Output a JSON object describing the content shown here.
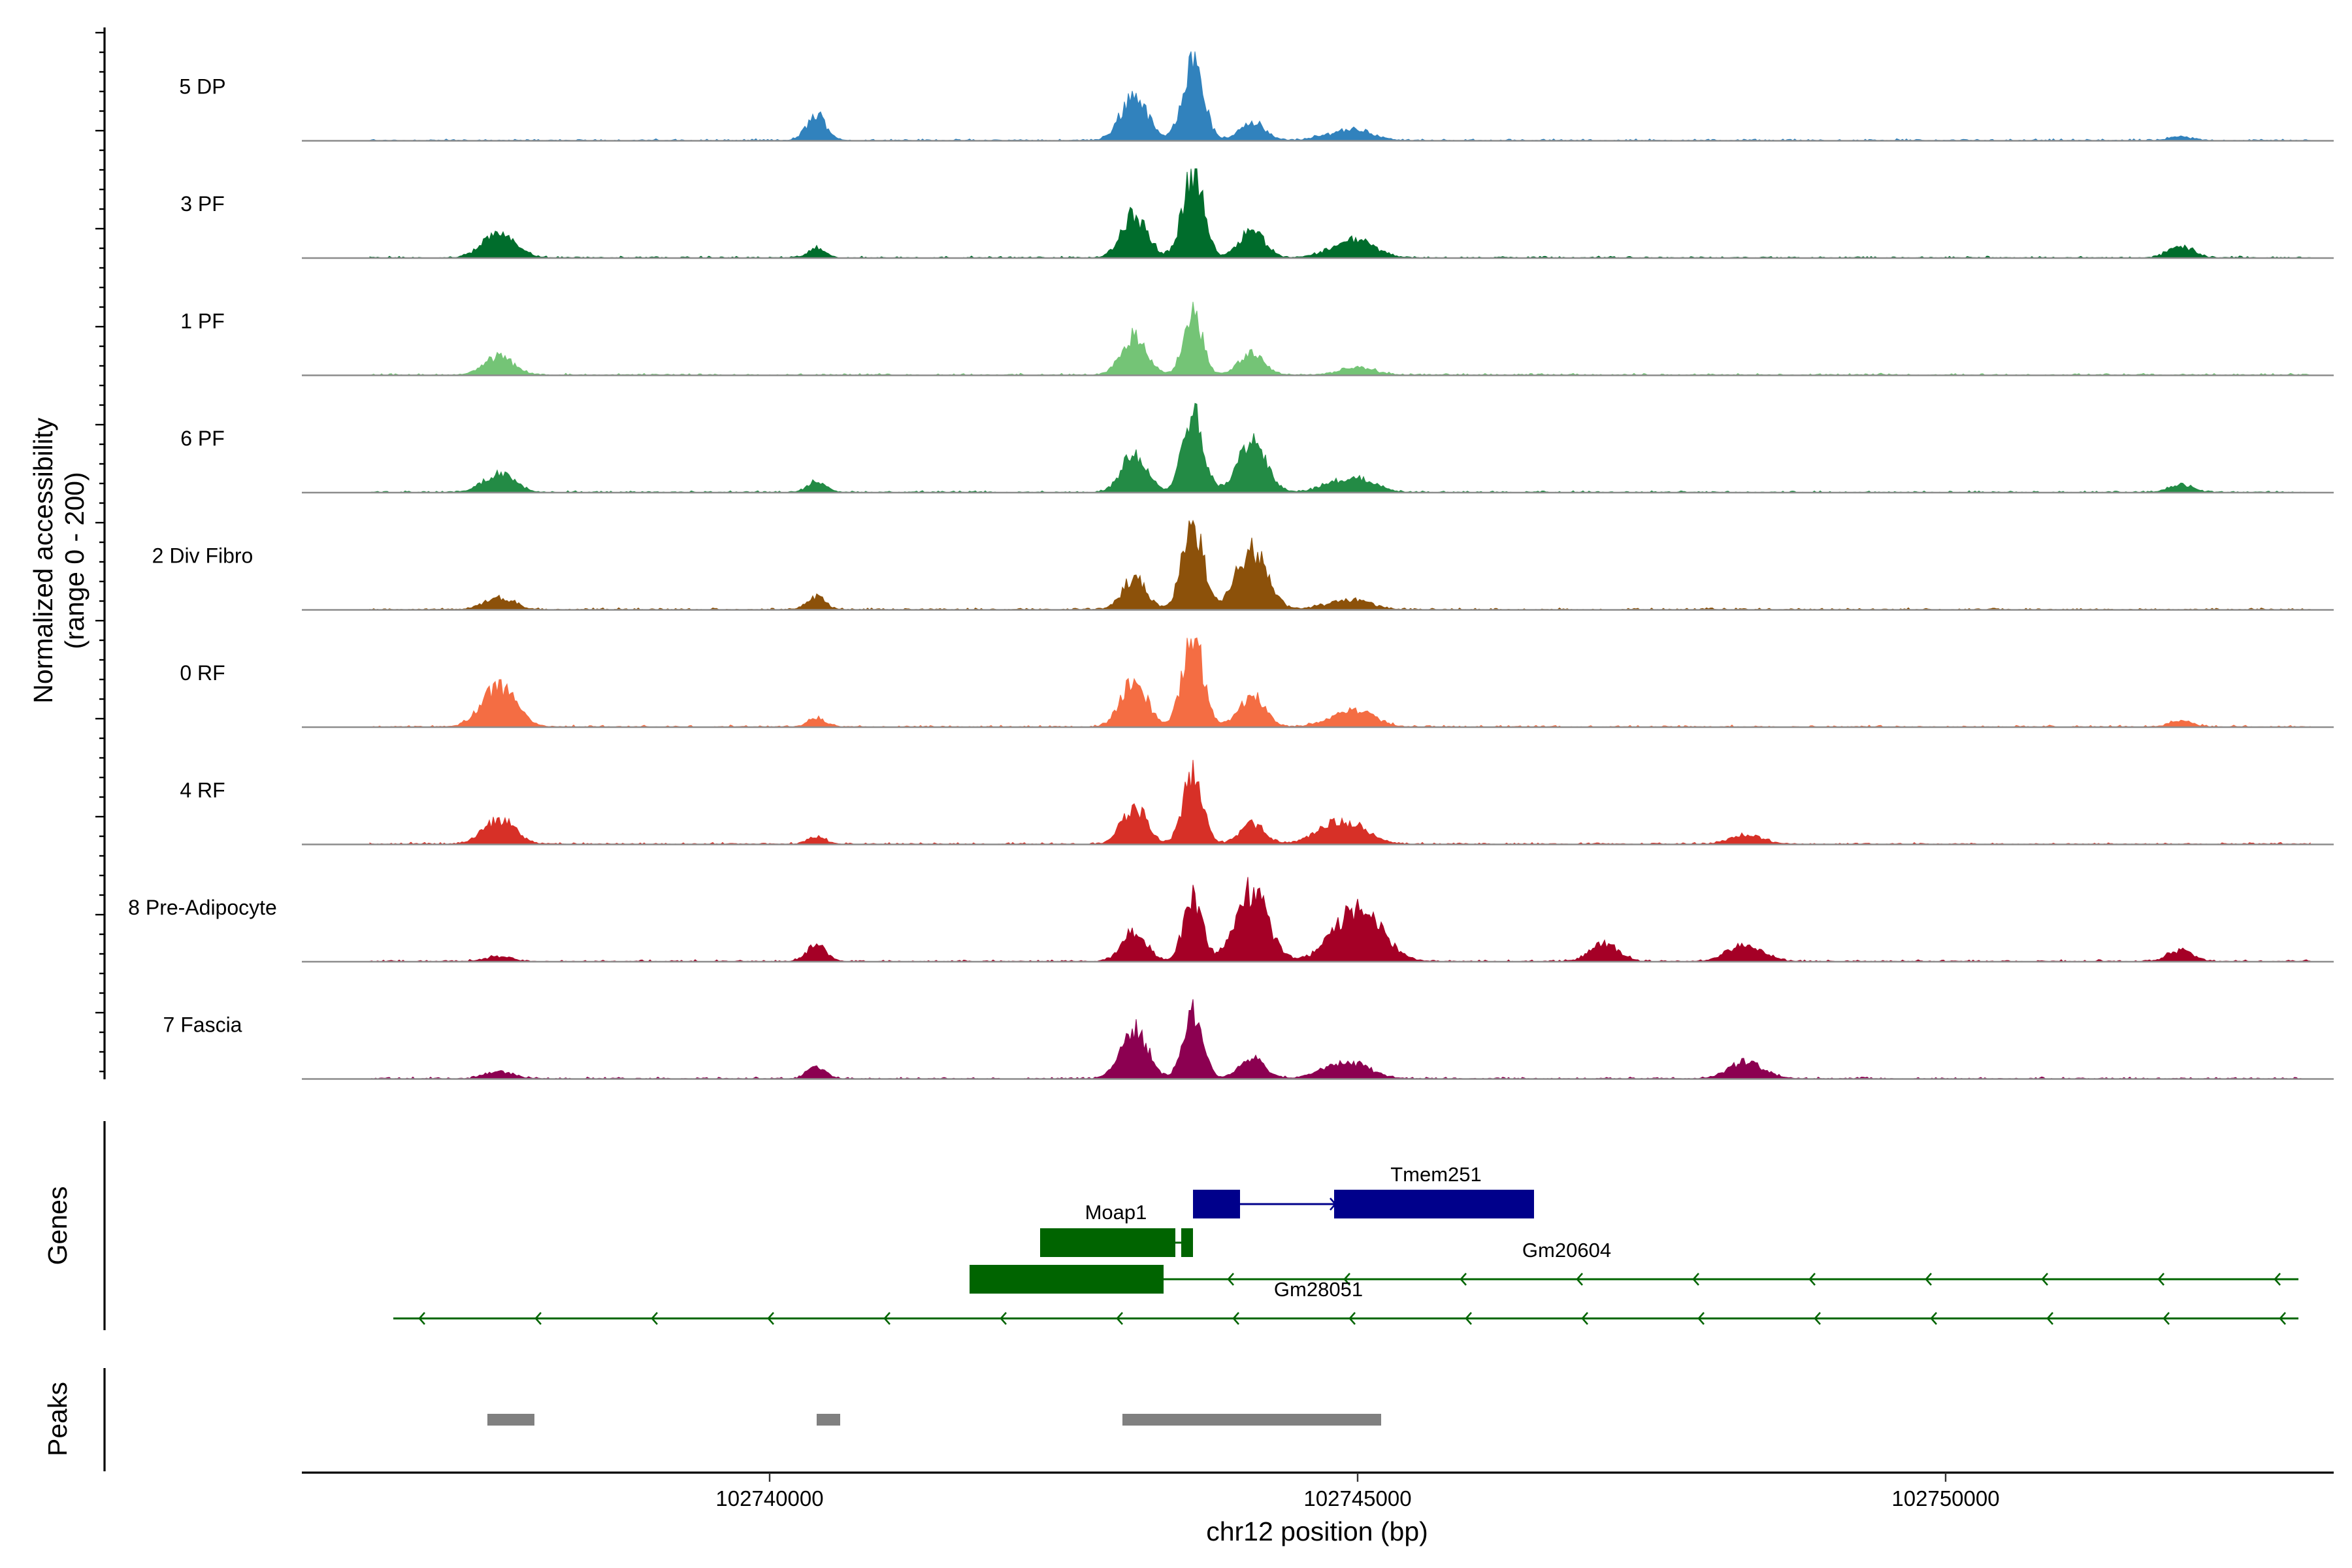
{
  "chart_data": {
    "type": "area",
    "subtype": "genome coverage track",
    "y_axis_title": [
      "Normalized accessibility",
      "(range 0 - 200)"
    ],
    "x_axis_title": "chr12 position (bp)",
    "region": {
      "chromosome": "chr12",
      "start": 102736000,
      "end": 102753300
    },
    "x_ticks": [
      102740000,
      102745000,
      102750000
    ],
    "tick_labels": [
      "102740000",
      "102745000",
      "102750000"
    ],
    "y_range": [
      0,
      200
    ],
    "peak_centers": [
      102737700,
      102740400,
      102743100,
      102743600,
      102744100,
      102744800,
      102745000,
      102747100,
      102748300,
      102752000
    ],
    "tracks": [
      {
        "label": "5 DP",
        "color": "#3182bd",
        "peak_heights": [
          0.0,
          0.28,
          0.52,
          0.96,
          0.22,
          0.05,
          0.1,
          0.0,
          0.0,
          0.04
        ]
      },
      {
        "label": "3 PF",
        "color": "#006d2c",
        "peak_heights": [
          0.3,
          0.1,
          0.48,
          0.98,
          0.32,
          0.05,
          0.18,
          0.0,
          0.0,
          0.13
        ]
      },
      {
        "label": "1 PF",
        "color": "#74c476",
        "peak_heights": [
          0.2,
          0.0,
          0.44,
          0.72,
          0.25,
          0.0,
          0.08,
          0.0,
          0.0,
          0.0
        ]
      },
      {
        "label": "6 PF",
        "color": "#238b45",
        "peak_heights": [
          0.22,
          0.13,
          0.45,
          0.94,
          0.55,
          0.06,
          0.14,
          0.0,
          0.0,
          0.09
        ]
      },
      {
        "label": "2 Div Fibro",
        "color": "#8c510a",
        "peak_heights": [
          0.14,
          0.14,
          0.35,
          1.0,
          0.68,
          0.05,
          0.08,
          0.0,
          0.0,
          0.0
        ]
      },
      {
        "label": "0 RF",
        "color": "#f46d43",
        "peak_heights": [
          0.45,
          0.1,
          0.52,
          1.0,
          0.35,
          0.05,
          0.16,
          0.0,
          0.0,
          0.07
        ]
      },
      {
        "label": "4 RF",
        "color": "#d73027",
        "peak_heights": [
          0.28,
          0.08,
          0.42,
          0.8,
          0.24,
          0.2,
          0.1,
          0.0,
          0.1,
          0.0
        ]
      },
      {
        "label": "8 Pre-Adipocyte",
        "color": "#a50026",
        "peak_heights": [
          0.05,
          0.19,
          0.35,
          0.73,
          0.8,
          0.0,
          0.6,
          0.2,
          0.19,
          0.13
        ]
      },
      {
        "label": "7 Fascia",
        "color": "#8c0051",
        "peak_heights": [
          0.08,
          0.13,
          0.56,
          0.78,
          0.25,
          0.1,
          0.12,
          0.0,
          0.19,
          0.0
        ]
      }
    ],
    "genes_panel_label": "Genes",
    "genes": [
      {
        "name": "Tmem251",
        "color": "#00008b",
        "strand": "+",
        "start": 102743600,
        "end": 102746500,
        "exons": [
          [
            102743600,
            102744000
          ],
          [
            102744800,
            102746500
          ]
        ]
      },
      {
        "name": "Moap1",
        "color": "#006400",
        "strand": "-",
        "start": 102742300,
        "end": 102743600,
        "exons": [
          [
            102742300,
            102743450
          ],
          [
            102743500,
            102743600
          ]
        ]
      },
      {
        "name": "Gm20604",
        "color": "#006400",
        "strand": "-",
        "start": 102741700,
        "end": 102753000,
        "exons": [
          [
            102741700,
            102743350
          ]
        ]
      },
      {
        "name": "Gm28051",
        "color": "#006400",
        "strand": "-",
        "start": 102736800,
        "end": 102753000,
        "exons": []
      }
    ],
    "peaks_panel_label": "Peaks",
    "peaks": [
      [
        102737600,
        102738000
      ],
      [
        102740400,
        102740600
      ],
      [
        102743000,
        102745200
      ]
    ],
    "peak_color": "#808080"
  }
}
